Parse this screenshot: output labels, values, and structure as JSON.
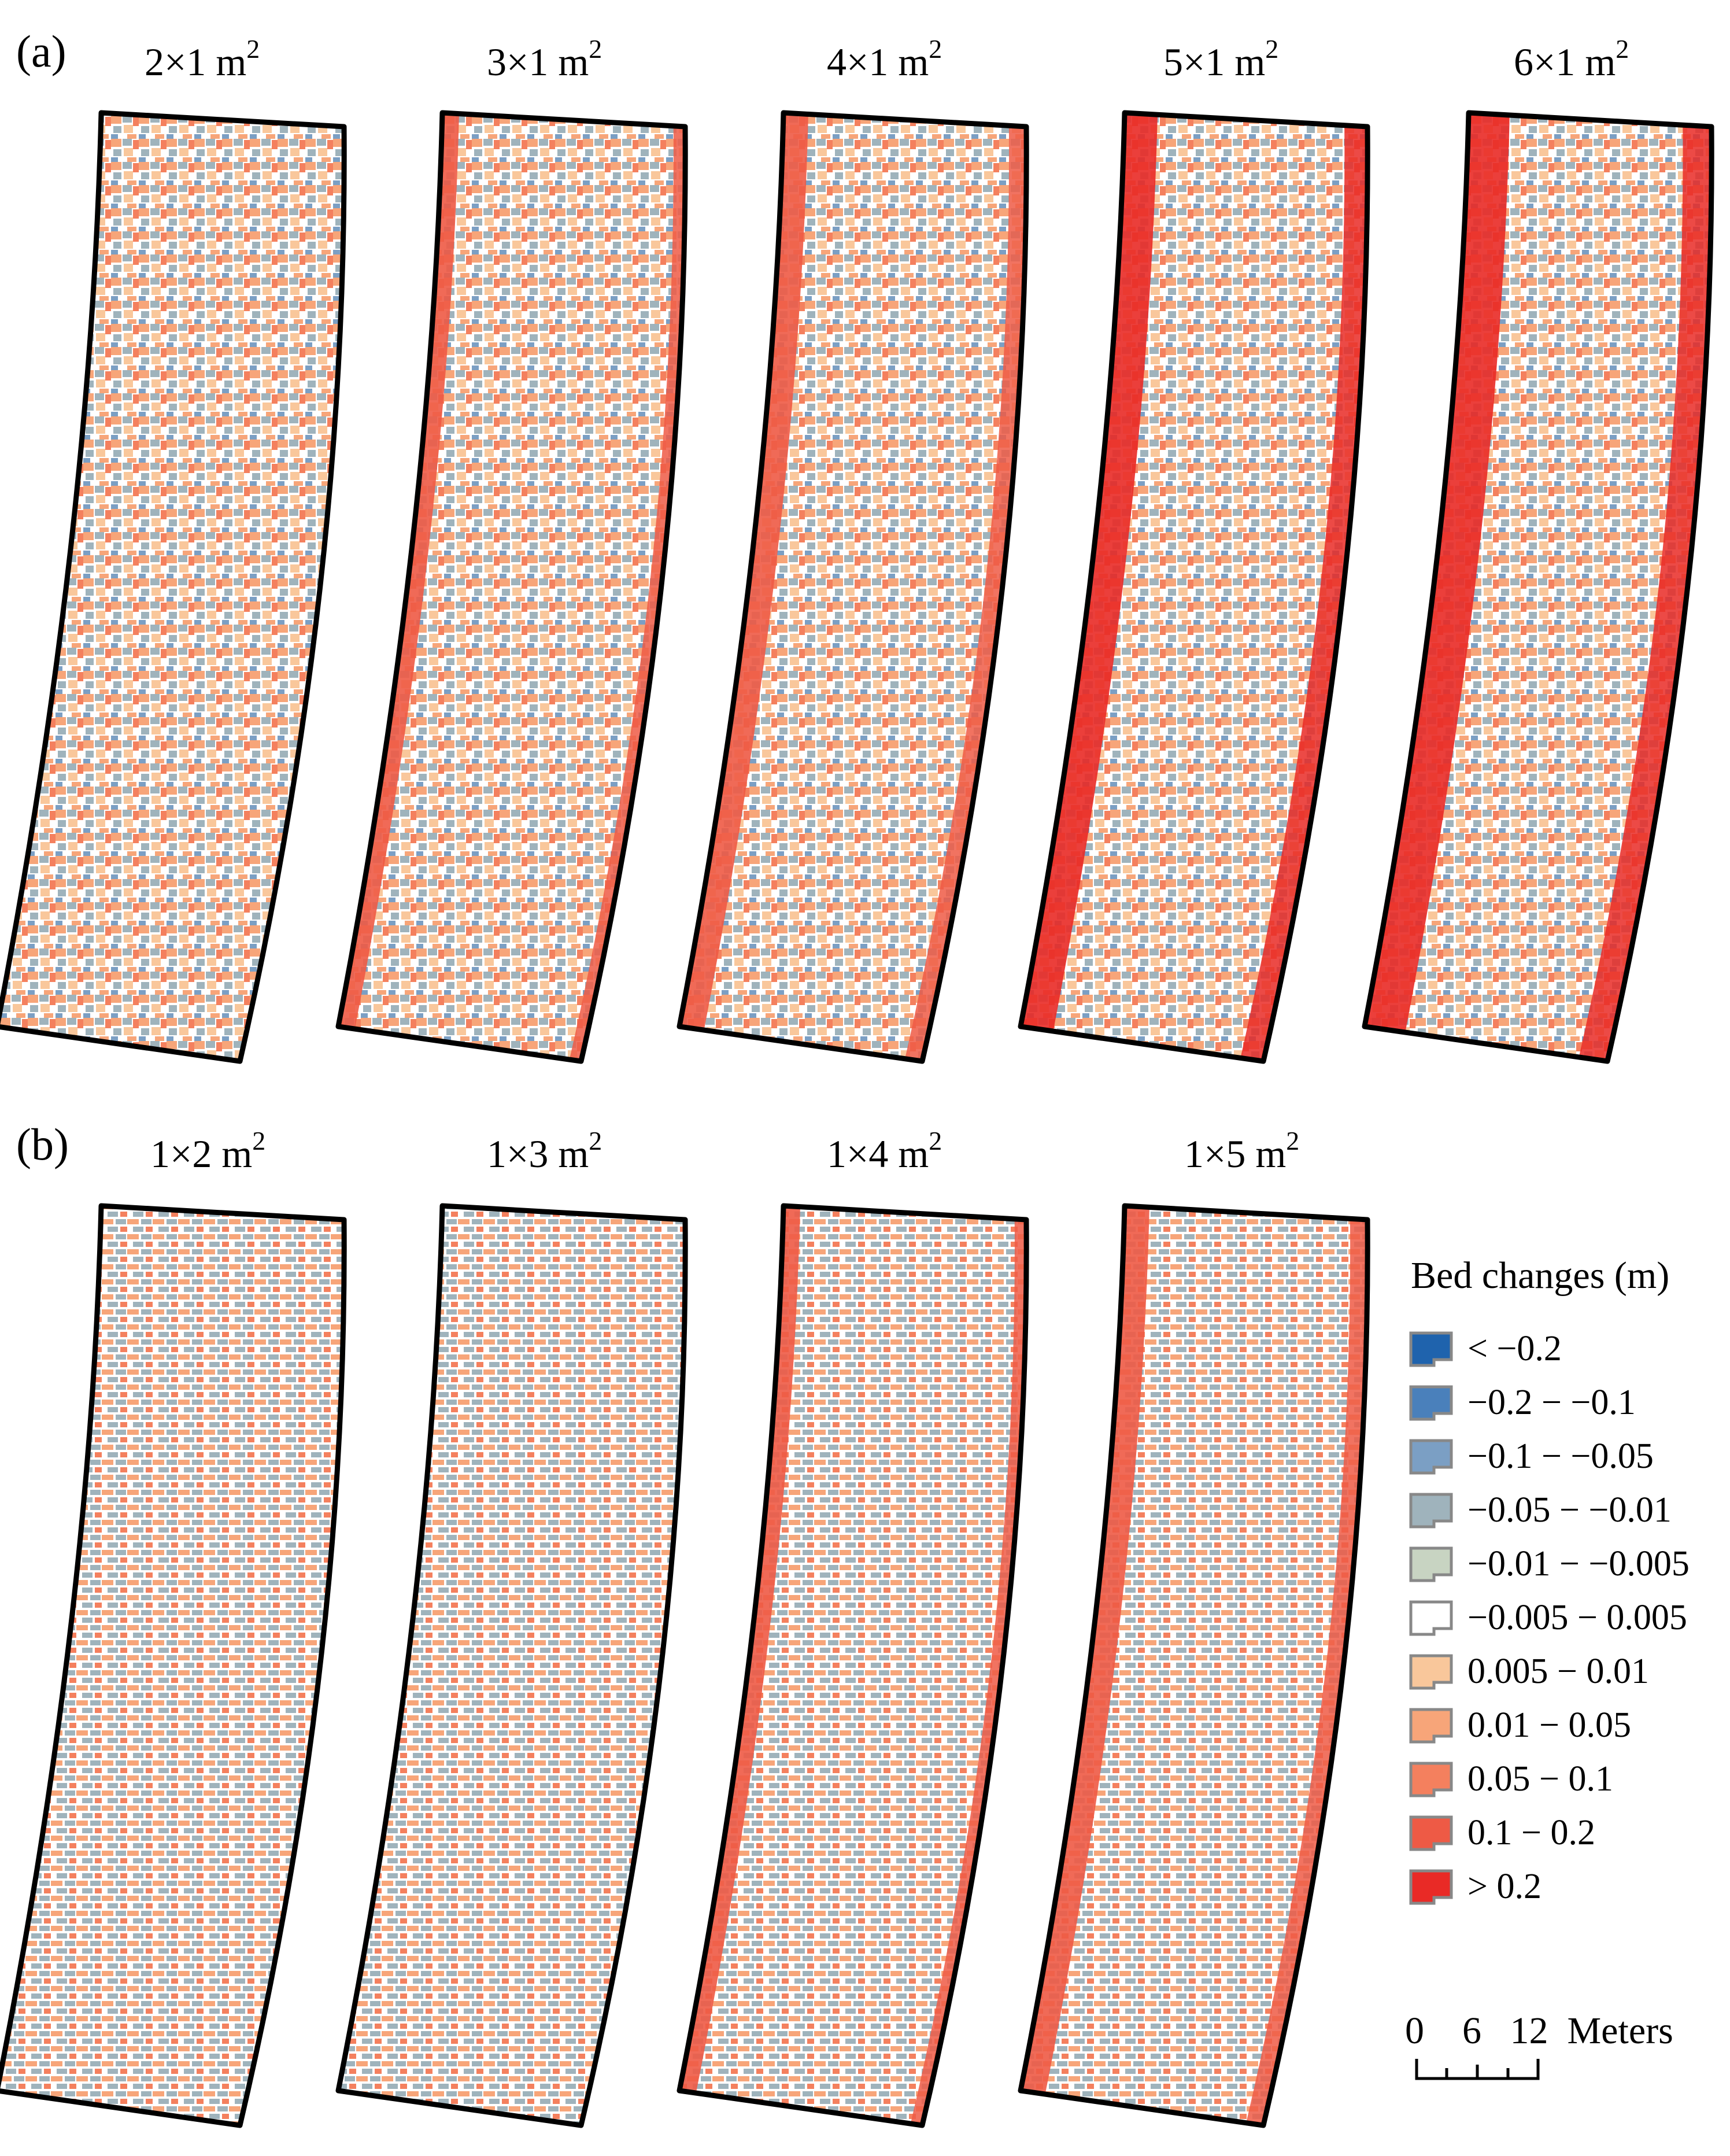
{
  "panels": [
    {
      "label": "(a)",
      "titles": [
        {
          "dims": "2×1 m",
          "exp": "2"
        },
        {
          "dims": "3×1 m",
          "exp": "2"
        },
        {
          "dims": "4×1 m",
          "exp": "2"
        },
        {
          "dims": "5×1 m",
          "exp": "2"
        },
        {
          "dims": "6×1 m",
          "exp": "2"
        }
      ]
    },
    {
      "label": "(b)",
      "titles": [
        {
          "dims": "1×2 m",
          "exp": "2"
        },
        {
          "dims": "1×3 m",
          "exp": "2"
        },
        {
          "dims": "1×4 m",
          "exp": "2"
        },
        {
          "dims": "1×5 m",
          "exp": "2"
        }
      ]
    }
  ],
  "legend": {
    "title": "Bed changes (m)",
    "classes": [
      {
        "label": "< −0.2",
        "color": "#1f63ad"
      },
      {
        "label": "−0.2 − −0.1",
        "color": "#4a80bb"
      },
      {
        "label": "−0.1 − −0.05",
        "color": "#7b9fc4"
      },
      {
        "label": "−0.05 − −0.01",
        "color": "#9fb3bc"
      },
      {
        "label": "−0.01 − −0.005",
        "color": "#c8d4c2"
      },
      {
        "label": "−0.005 − 0.005",
        "color": "#ffffff"
      },
      {
        "label": "0.005 − 0.01",
        "color": "#f9c79b"
      },
      {
        "label": "0.01 − 0.05",
        "color": "#f7a579"
      },
      {
        "label": "0.05 − 0.1",
        "color": "#f4805e"
      },
      {
        "label": "0.1 − 0.2",
        "color": "#ee5a45"
      },
      {
        "label": "> 0.2",
        "color": "#e92a26"
      }
    ]
  },
  "scale_bar": {
    "text": "0    6   12  Meters"
  }
}
